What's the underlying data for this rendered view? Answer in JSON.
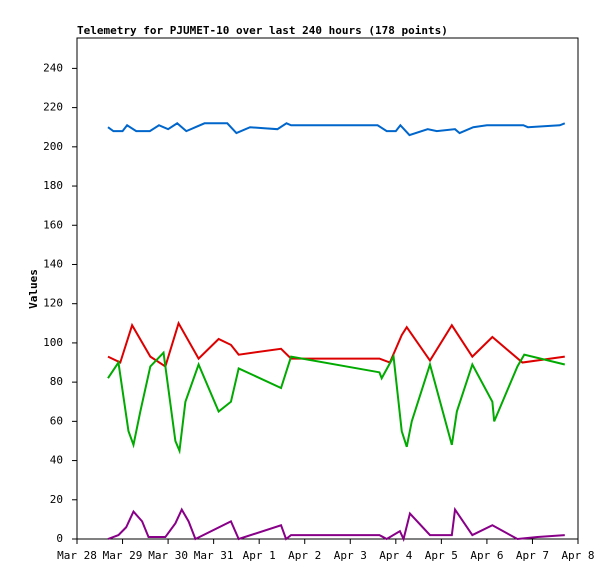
{
  "chart_data": {
    "type": "line",
    "title": "Telemetry for PJUMET-10 over last 240 hours (178 points)",
    "ylabel": "Values",
    "xlim": [
      0,
      11
    ],
    "ylim": [
      0,
      255.5
    ],
    "xticks": [
      {
        "value": 0,
        "label": "Mar 28"
      },
      {
        "value": 1,
        "label": "Mar 29"
      },
      {
        "value": 2,
        "label": "Mar 30"
      },
      {
        "value": 3,
        "label": "Mar 31"
      },
      {
        "value": 4,
        "label": "Apr 1"
      },
      {
        "value": 5,
        "label": "Apr 2"
      },
      {
        "value": 6,
        "label": "Apr 3"
      },
      {
        "value": 7,
        "label": "Apr 4"
      },
      {
        "value": 8,
        "label": "Apr 5"
      },
      {
        "value": 9,
        "label": "Apr 6"
      },
      {
        "value": 10,
        "label": "Apr 7"
      },
      {
        "value": 11,
        "label": "Apr 8"
      }
    ],
    "yticks": [
      0,
      20,
      40,
      60,
      80,
      100,
      120,
      140,
      160,
      180,
      200,
      220,
      240
    ],
    "series": [
      {
        "color": "#0066cc",
        "x": [
          0.68,
          0.8,
          1.0,
          1.1,
          1.3,
          1.6,
          1.8,
          2.0,
          2.2,
          2.4,
          2.6,
          2.8,
          3.1,
          3.3,
          3.5,
          3.8,
          4.4,
          4.6,
          4.7,
          6.6,
          6.8,
          7.0,
          7.1,
          7.3,
          7.7,
          7.9,
          8.3,
          8.4,
          8.7,
          9.0,
          9.8,
          9.9,
          10.6,
          10.71
        ],
        "values": [
          210,
          208,
          208,
          211,
          208,
          208,
          211,
          209,
          212,
          208,
          210,
          212,
          212,
          212,
          207,
          210,
          209,
          212,
          211,
          211,
          208,
          208,
          211,
          206,
          209,
          208,
          209,
          207,
          210,
          211,
          211,
          210,
          211,
          212
        ]
      },
      {
        "color": "#dd0000",
        "x": [
          0.68,
          0.95,
          1.21,
          1.61,
          1.94,
          2.23,
          2.67,
          3.11,
          3.38,
          3.55,
          4.48,
          4.7,
          6.64,
          6.87,
          7.13,
          7.24,
          7.75,
          8.23,
          8.68,
          9.12,
          9.78,
          10.71
        ],
        "values": [
          93,
          90,
          109,
          93,
          88,
          110,
          92,
          102,
          99,
          94,
          97,
          92,
          92,
          90,
          104,
          108,
          91,
          109,
          93,
          103,
          90,
          93
        ]
      },
      {
        "color": "#00aa00",
        "x": [
          0.68,
          0.91,
          1.13,
          1.24,
          1.39,
          1.61,
          1.9,
          2.16,
          2.25,
          2.38,
          2.67,
          3.11,
          3.38,
          3.55,
          4.48,
          4.59,
          4.7,
          6.64,
          6.69,
          6.95,
          7.13,
          7.24,
          7.35,
          7.75,
          8.23,
          8.34,
          8.68,
          9.12,
          9.16,
          9.67,
          9.82,
          10.71
        ],
        "values": [
          82,
          90,
          55,
          48,
          65,
          88,
          95,
          50,
          45,
          70,
          89,
          65,
          70,
          87,
          77,
          85,
          93,
          85,
          82,
          93,
          55,
          47,
          60,
          89,
          48,
          65,
          89,
          70,
          60,
          88,
          94,
          89
        ]
      },
      {
        "color": "#880088",
        "x": [
          0.68,
          0.91,
          1.08,
          1.24,
          1.43,
          1.57,
          1.94,
          2.16,
          2.3,
          2.45,
          2.6,
          3.38,
          3.55,
          4.48,
          4.59,
          4.7,
          6.64,
          6.8,
          7.09,
          7.17,
          7.31,
          7.75,
          8.23,
          8.3,
          8.68,
          9.12,
          9.67,
          10.11,
          10.71
        ],
        "values": [
          0,
          2,
          6,
          14,
          9,
          1,
          1,
          8,
          15,
          9,
          0,
          9,
          0,
          7,
          0,
          2,
          2,
          0,
          4,
          0,
          13,
          2,
          2,
          15,
          2,
          7,
          0,
          1,
          2
        ]
      }
    ]
  }
}
